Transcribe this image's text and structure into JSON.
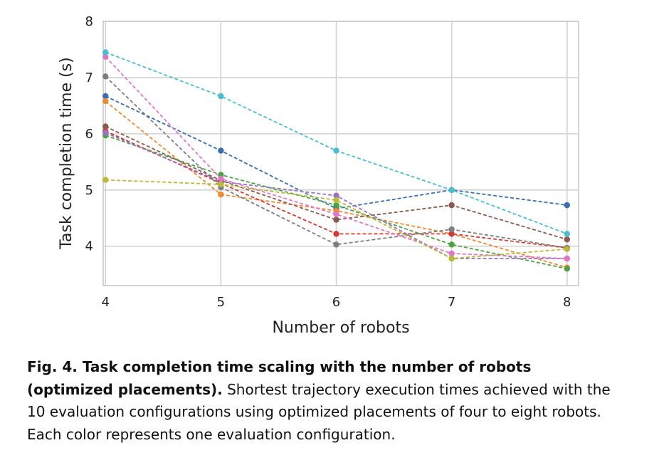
{
  "chart_data": {
    "type": "line",
    "xlabel": "Number of robots",
    "ylabel": "Task completion time (s)",
    "xlim": [
      3.98,
      8.1
    ],
    "ylim": [
      3.3,
      8.0
    ],
    "xticks": [
      4,
      5,
      6,
      7,
      8
    ],
    "yticks": [
      4,
      5,
      6,
      7,
      8
    ],
    "grid": true,
    "x": [
      4,
      5,
      6,
      7,
      8
    ],
    "series": [
      {
        "color": "#3b6fb0",
        "values": [
          6.67,
          5.7,
          4.67,
          5.0,
          4.73
        ]
      },
      {
        "color": "#ee8a32",
        "values": [
          6.58,
          4.92,
          4.63,
          4.22,
          3.62
        ]
      },
      {
        "color": "#4da246",
        "values": [
          5.97,
          5.27,
          4.73,
          4.03,
          3.6
        ]
      },
      {
        "color": "#d33a35",
        "values": [
          6.05,
          5.12,
          4.22,
          4.22,
          3.97
        ]
      },
      {
        "color": "#9b72c0",
        "values": [
          6.02,
          5.15,
          4.9,
          3.78,
          3.78
        ]
      },
      {
        "color": "#8b5a4e",
        "values": [
          6.13,
          5.17,
          4.47,
          4.73,
          4.12
        ]
      },
      {
        "color": "#de77c7",
        "values": [
          7.37,
          5.2,
          4.57,
          3.87,
          3.78
        ]
      },
      {
        "color": "#7f7f7f",
        "values": [
          7.02,
          5.05,
          4.03,
          4.3,
          3.97
        ]
      },
      {
        "color": "#b9ba3a",
        "values": [
          5.18,
          5.1,
          4.82,
          3.78,
          3.95
        ]
      },
      {
        "color": "#4cbccf",
        "values": [
          7.45,
          6.67,
          5.7,
          5.0,
          4.22
        ]
      }
    ]
  },
  "caption": {
    "bold": "Fig. 4. Task completion time scaling with the number of robots (optimized placements).",
    "text": " Shortest trajectory execution times achieved with the 10 evaluation configurations using optimized placements of four to eight robots. Each color represents one evaluation configuration."
  }
}
